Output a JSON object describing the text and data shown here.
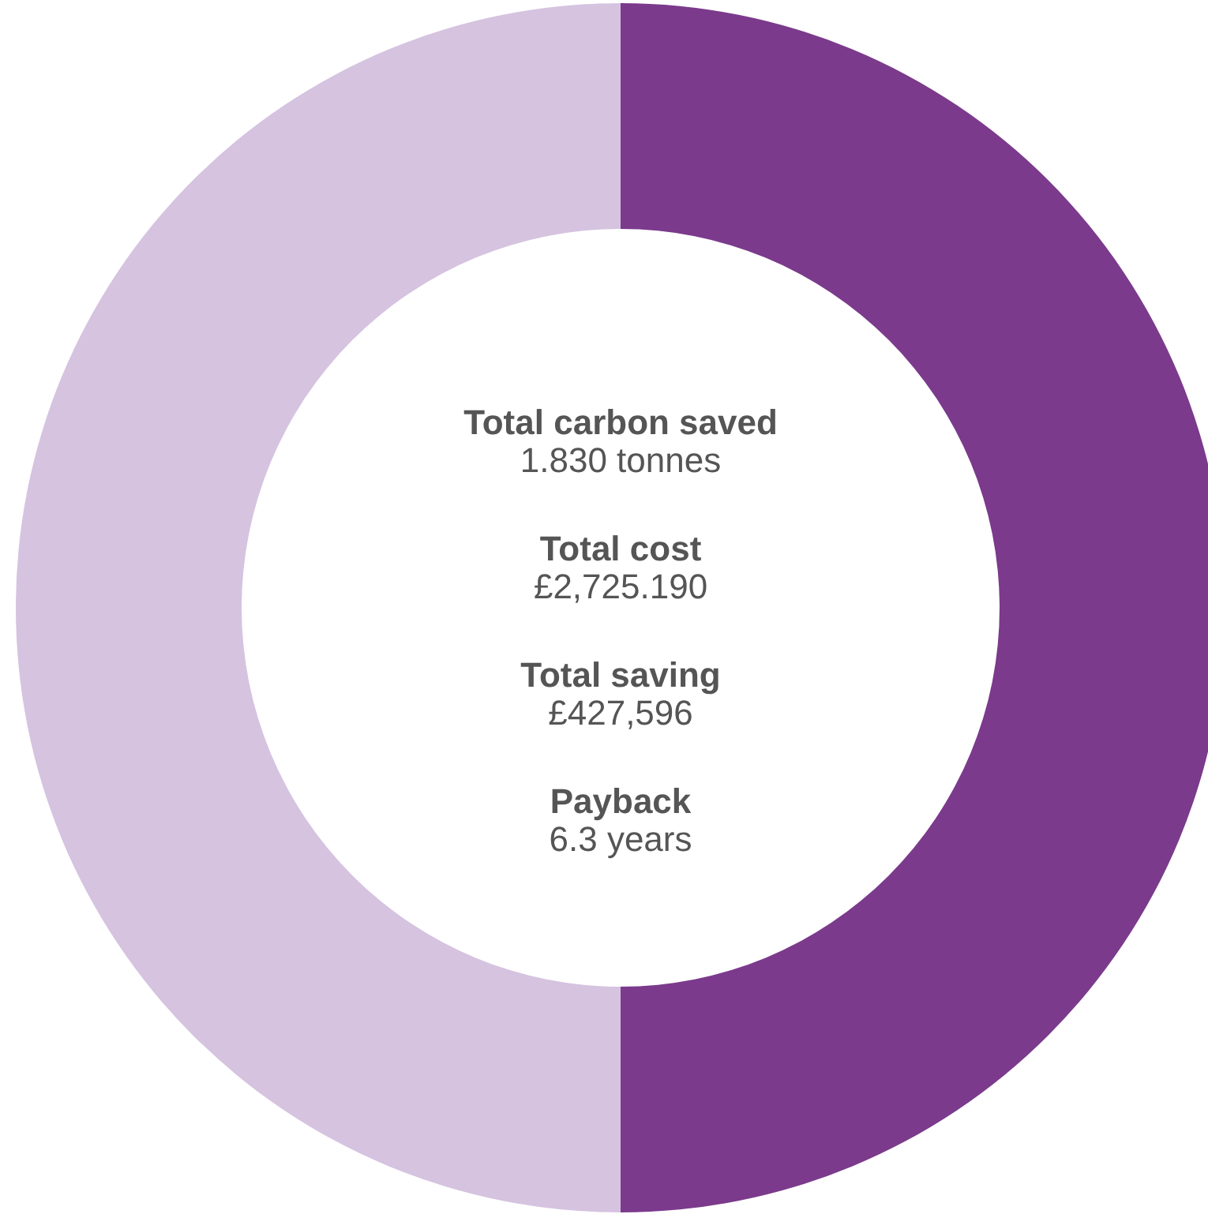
{
  "chart_data": {
    "type": "donut",
    "categories": [
      null,
      null
    ],
    "values": [
      50,
      50
    ],
    "colors": [
      "#7b3a8c",
      "#d5c3e0"
    ],
    "annotations": [
      "Total carbon saved",
      "1.830 tonnes",
      "Total cost",
      "£2,725.190",
      "Total saving",
      "£427,596",
      "Payback",
      "6.3 years"
    ]
  }
}
